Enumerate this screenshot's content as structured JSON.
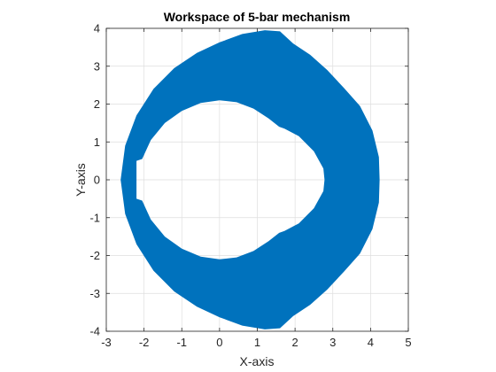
{
  "chart_data": {
    "type": "area",
    "title": "Workspace of 5-bar mechanism",
    "xlabel": "X-axis",
    "ylabel": "Y-axis",
    "xlim": [
      -3,
      5
    ],
    "ylim": [
      -4,
      4
    ],
    "xticks": [
      -3,
      -2,
      -1,
      0,
      1,
      2,
      3,
      4,
      5
    ],
    "yticks": [
      -4,
      -3,
      -2,
      -1,
      0,
      1,
      2,
      3,
      4
    ],
    "grid": true,
    "legend": "none",
    "fill_color": "#0072BD",
    "series": [
      {
        "outer_boundary": [
          [
            1.6,
            3.92
          ],
          [
            1.95,
            3.6
          ],
          [
            2.4,
            3.3
          ],
          [
            2.85,
            2.9
          ],
          [
            3.3,
            2.42
          ],
          [
            3.72,
            1.95
          ],
          [
            4.05,
            1.3
          ],
          [
            4.22,
            0.6
          ],
          [
            4.24,
            0
          ],
          [
            4.22,
            -0.6
          ],
          [
            4.05,
            -1.3
          ],
          [
            3.72,
            -1.95
          ],
          [
            3.3,
            -2.42
          ],
          [
            2.85,
            -2.9
          ],
          [
            2.4,
            -3.3
          ],
          [
            1.95,
            -3.6
          ],
          [
            1.6,
            -3.92
          ],
          [
            1.2,
            -3.95
          ],
          [
            0.6,
            -3.85
          ],
          [
            0.0,
            -3.63
          ],
          [
            -0.6,
            -3.35
          ],
          [
            -1.2,
            -2.95
          ],
          [
            -1.75,
            -2.4
          ],
          [
            -2.2,
            -1.7
          ],
          [
            -2.5,
            -0.9
          ],
          [
            -2.62,
            0
          ],
          [
            -2.5,
            0.9
          ],
          [
            -2.2,
            1.7
          ],
          [
            -1.75,
            2.4
          ],
          [
            -1.2,
            2.95
          ],
          [
            -0.6,
            3.35
          ],
          [
            0.0,
            3.63
          ],
          [
            0.6,
            3.85
          ],
          [
            1.2,
            3.95
          ]
        ],
        "inner_boundary": [
          [
            0.0,
            2.1
          ],
          [
            0.45,
            2.05
          ],
          [
            0.9,
            1.88
          ],
          [
            1.3,
            1.62
          ],
          [
            1.58,
            1.4
          ],
          [
            1.72,
            1.35
          ],
          [
            2.1,
            1.15
          ],
          [
            2.5,
            0.75
          ],
          [
            2.75,
            0.3
          ],
          [
            2.78,
            0
          ],
          [
            2.75,
            -0.3
          ],
          [
            2.5,
            -0.75
          ],
          [
            2.1,
            -1.15
          ],
          [
            1.72,
            -1.35
          ],
          [
            1.58,
            -1.4
          ],
          [
            1.3,
            -1.62
          ],
          [
            0.9,
            -1.88
          ],
          [
            0.45,
            -2.05
          ],
          [
            0.0,
            -2.1
          ],
          [
            -0.5,
            -2.03
          ],
          [
            -1.0,
            -1.82
          ],
          [
            -1.45,
            -1.5
          ],
          [
            -1.82,
            -1.05
          ],
          [
            -2.05,
            -0.55
          ],
          [
            -2.2,
            -0.5
          ],
          [
            -2.2,
            0.5
          ],
          [
            -2.05,
            0.55
          ],
          [
            -1.82,
            1.05
          ],
          [
            -1.45,
            1.5
          ],
          [
            -1.0,
            1.82
          ],
          [
            -0.5,
            2.03
          ]
        ]
      }
    ]
  }
}
